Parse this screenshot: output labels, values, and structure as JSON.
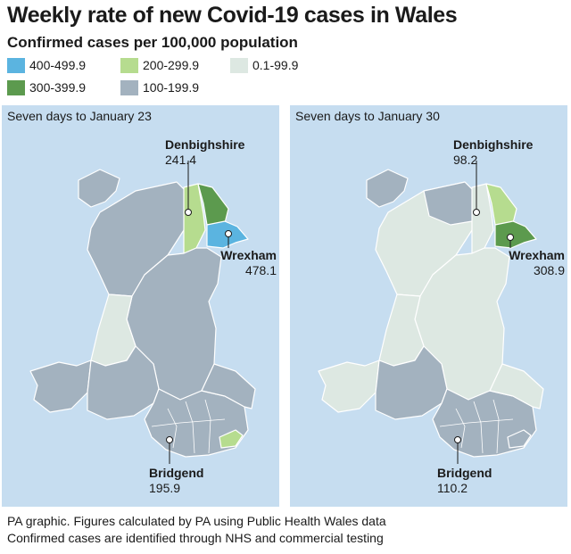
{
  "title": "Weekly rate of new Covid-19 cases in Wales",
  "legend": {
    "title": "Confirmed cases per 100,000 population",
    "items": [
      {
        "label": "400-499.9",
        "color": "#5bb4e0"
      },
      {
        "label": "300-399.9",
        "color": "#5c9a4e"
      },
      {
        "label": "200-299.9",
        "color": "#b6dc8f"
      },
      {
        "label": "100-199.9",
        "color": "#a3b2bf"
      },
      {
        "label": "0.1-99.9",
        "color": "#dde8e2"
      }
    ]
  },
  "panels": [
    {
      "heading": "Seven days to January 23",
      "denbighshire": {
        "name": "Denbighshire",
        "value": "241.4"
      },
      "wrexham": {
        "name": "Wrexham",
        "value": "478.1"
      },
      "bridgend": {
        "name": "Bridgend",
        "value": "195.9"
      }
    },
    {
      "heading": "Seven days to January 30",
      "denbighshire": {
        "name": "Denbighshire",
        "value": "98.2"
      },
      "wrexham": {
        "name": "Wrexham",
        "value": "308.9"
      },
      "bridgend": {
        "name": "Bridgend",
        "value": "110.2"
      }
    }
  ],
  "footer": {
    "line1": "PA graphic. Figures calculated by PA using Public Health Wales data",
    "line2": "Confirmed cases are identified through NHS and commercial testing"
  }
}
